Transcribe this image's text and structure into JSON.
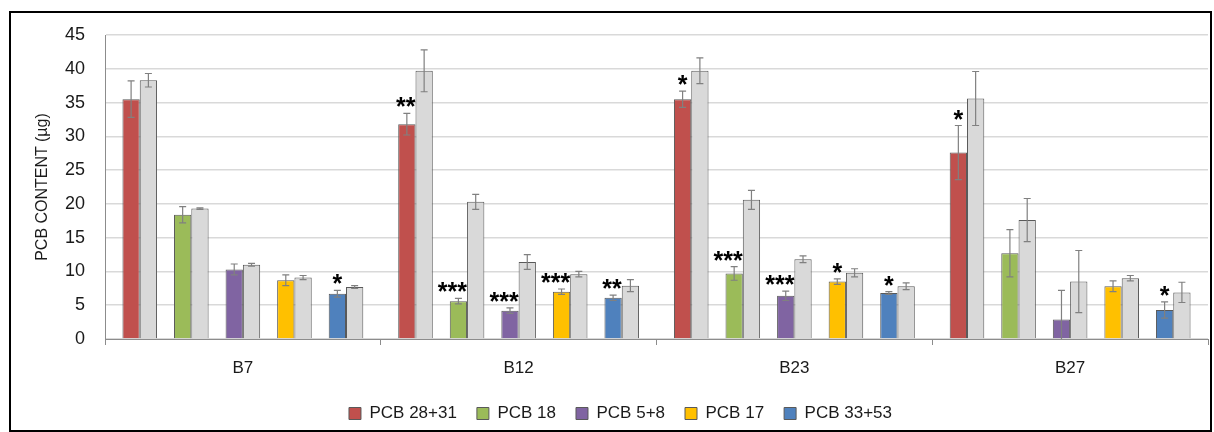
{
  "chart_data": {
    "type": "bar",
    "ylabel": "PCB CONTENT (µg)",
    "categories": [
      "B7",
      "B12",
      "B23",
      "B27"
    ],
    "ylim": [
      0,
      45
    ],
    "yticks": [
      0,
      5,
      10,
      15,
      20,
      25,
      30,
      35,
      40,
      45
    ],
    "grid": "y",
    "legend": "bottom",
    "series": [
      {
        "name": "PCB 28+31",
        "color": "#c0504d",
        "values": [
          35.5,
          31.8,
          35.5,
          27.6
        ],
        "errors": [
          2.7,
          1.6,
          1.2,
          4.0
        ],
        "value_labels": [
          null,
          "**",
          "*",
          "*"
        ]
      },
      {
        "color": "#d9d9d9",
        "values": [
          38.3,
          39.7,
          39.7,
          35.6
        ],
        "errors": [
          1.0,
          3.1,
          1.9,
          4.0
        ]
      },
      {
        "name": "PCB 18",
        "color": "#9bbb59",
        "values": [
          18.4,
          5.6,
          9.7,
          12.7
        ],
        "errors": [
          1.2,
          0.4,
          1.0,
          3.5
        ],
        "value_labels": [
          null,
          "***",
          "***",
          null
        ]
      },
      {
        "color": "#d9d9d9",
        "values": [
          19.3,
          20.3,
          20.6,
          17.6
        ],
        "errors": [
          0.1,
          1.1,
          1.4,
          3.2
        ]
      },
      {
        "name": "PCB 5+8",
        "color": "#8064a2",
        "values": [
          10.3,
          4.2,
          6.4,
          2.9
        ],
        "errors": [
          0.8,
          0.4,
          0.7,
          [
            0,
            7.2
          ]
        ],
        "value_labels": [
          null,
          "***",
          "***",
          null
        ]
      },
      {
        "color": "#d9d9d9",
        "values": [
          11.0,
          11.4,
          11.8,
          8.5
        ],
        "errors": [
          0.2,
          1.1,
          0.5,
          4.6
        ]
      },
      {
        "name": "PCB 17",
        "color": "#ffc000",
        "values": [
          8.7,
          7.0,
          8.5,
          7.8
        ],
        "errors": [
          0.8,
          0.4,
          0.4,
          0.8
        ],
        "value_labels": [
          null,
          "***",
          "*",
          null
        ]
      },
      {
        "color": "#d9d9d9",
        "values": [
          9.1,
          9.6,
          9.8,
          9.0
        ],
        "errors": [
          0.3,
          0.4,
          0.6,
          0.4
        ]
      },
      {
        "name": "PCB 33+53",
        "color": "#4f81bd",
        "values": [
          6.7,
          6.1,
          6.8,
          4.3
        ],
        "errors": [
          0.5,
          0.4,
          0.2,
          1.2
        ],
        "value_labels": [
          "*",
          "**",
          "*",
          "*"
        ]
      },
      {
        "color": "#d9d9d9",
        "values": [
          7.7,
          7.9,
          7.8,
          6.9
        ],
        "errors": [
          0.2,
          0.9,
          0.5,
          1.5
        ]
      }
    ]
  }
}
